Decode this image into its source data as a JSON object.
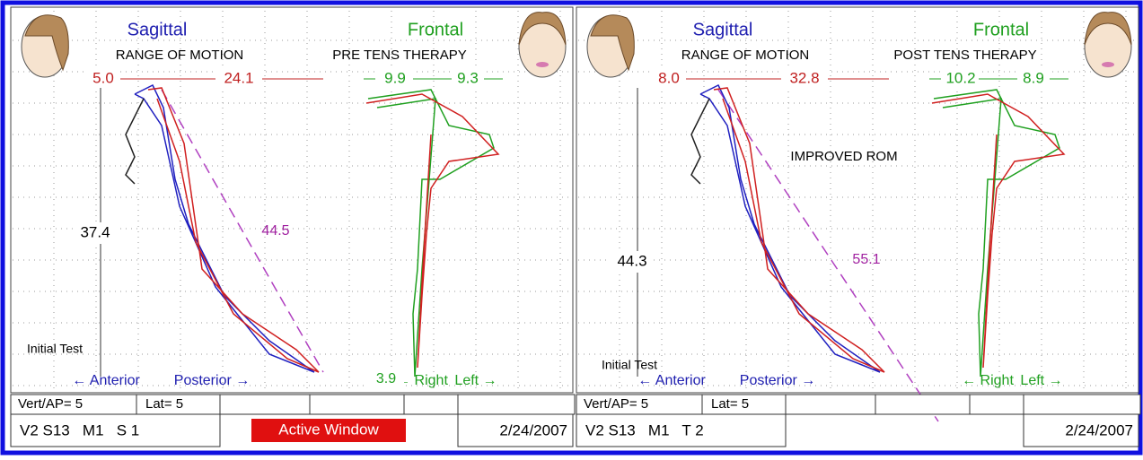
{
  "panels": [
    {
      "sagittal": "Sagittal",
      "frontal": "Frontal",
      "range": "RANGE OF MOTION",
      "therapy": "PRE TENS THERAPY",
      "sag_anterior": "5.0",
      "sag_posterior": "24.1",
      "front_right": "9.9",
      "front_left": "9.3",
      "vertical": "37.4",
      "diagonal": "44.5",
      "test": "Initial Test",
      "anterior": "← Anterior",
      "posterior": "Posterior →",
      "right": "← Right",
      "left": "Left →",
      "frontal_note": "3.9",
      "vert_ap": "Vert/AP= 5",
      "lat": "Lat= 5",
      "session": "V2 S13   M1   S 1",
      "date": "2/24/2007"
    },
    {
      "sagittal": "Sagittal",
      "frontal": "Frontal",
      "range": "RANGE OF MOTION",
      "therapy": "POST TENS THERAPY",
      "sag_anterior": "8.0",
      "sag_posterior": "32.8",
      "front_right": "10.2",
      "front_left": "8.9",
      "vertical": "44.3",
      "diagonal": "55.1",
      "test": "Initial Test",
      "anterior": "← Anterior",
      "posterior": "Posterior →",
      "right": "← Right",
      "left": "Left →",
      "vert_ap": "Vert/AP= 5",
      "lat": "Lat= 5",
      "session": "V2 S13   M1   T 2",
      "date": "2/24/2007"
    }
  ],
  "active_window": "Active Window",
  "annotation": "IMPROVED ROM"
}
